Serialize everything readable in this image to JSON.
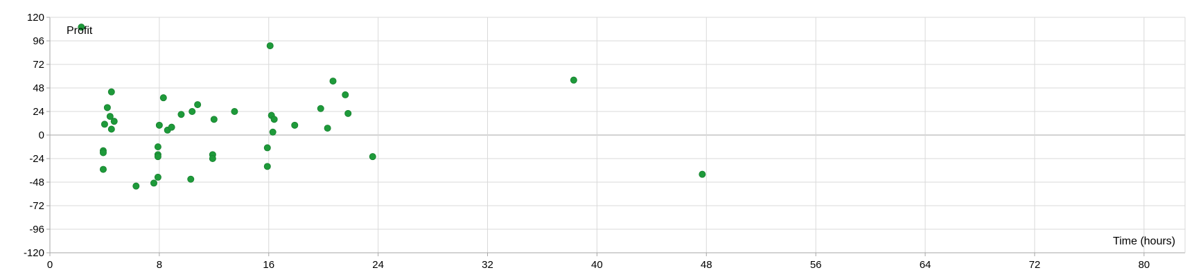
{
  "chart_data": {
    "type": "scatter",
    "xlabel": "Time (hours)",
    "ylabel": "Profit",
    "xlim": [
      0,
      83
    ],
    "ylim": [
      -120,
      120
    ],
    "x_ticks": [
      0,
      8,
      16,
      24,
      32,
      40,
      48,
      56,
      64,
      72,
      80
    ],
    "y_ticks": [
      120,
      96,
      72,
      48,
      24,
      0,
      -24,
      -48,
      -72,
      -96,
      -120
    ],
    "grid": true,
    "marker_color": "#1e9a3a",
    "series": [
      {
        "points": [
          {
            "x": 2.3,
            "y": 110
          },
          {
            "x": 3.9,
            "y": -16
          },
          {
            "x": 3.9,
            "y": -18
          },
          {
            "x": 3.9,
            "y": -35
          },
          {
            "x": 4.0,
            "y": 11
          },
          {
            "x": 4.2,
            "y": 28
          },
          {
            "x": 4.4,
            "y": 19
          },
          {
            "x": 4.5,
            "y": 6
          },
          {
            "x": 4.5,
            "y": 44
          },
          {
            "x": 4.7,
            "y": 14
          },
          {
            "x": 6.3,
            "y": -52
          },
          {
            "x": 7.6,
            "y": -49
          },
          {
            "x": 7.9,
            "y": -12
          },
          {
            "x": 7.9,
            "y": -20
          },
          {
            "x": 7.9,
            "y": -22
          },
          {
            "x": 7.9,
            "y": -43
          },
          {
            "x": 8.0,
            "y": 10
          },
          {
            "x": 8.3,
            "y": 38
          },
          {
            "x": 8.6,
            "y": 5
          },
          {
            "x": 8.9,
            "y": 8
          },
          {
            "x": 9.6,
            "y": 21
          },
          {
            "x": 10.3,
            "y": -45
          },
          {
            "x": 10.4,
            "y": 24
          },
          {
            "x": 10.8,
            "y": 31
          },
          {
            "x": 11.9,
            "y": -20
          },
          {
            "x": 11.9,
            "y": -24
          },
          {
            "x": 12.0,
            "y": 16
          },
          {
            "x": 13.5,
            "y": 24
          },
          {
            "x": 15.9,
            "y": -13
          },
          {
            "x": 15.9,
            "y": -32
          },
          {
            "x": 16.1,
            "y": 91
          },
          {
            "x": 16.2,
            "y": 20
          },
          {
            "x": 16.3,
            "y": 3
          },
          {
            "x": 16.4,
            "y": 16
          },
          {
            "x": 17.9,
            "y": 10
          },
          {
            "x": 19.8,
            "y": 27
          },
          {
            "x": 20.3,
            "y": 7
          },
          {
            "x": 20.7,
            "y": 55
          },
          {
            "x": 21.6,
            "y": 41
          },
          {
            "x": 21.8,
            "y": 22
          },
          {
            "x": 23.6,
            "y": -22
          },
          {
            "x": 38.3,
            "y": 56
          },
          {
            "x": 47.7,
            "y": -40
          }
        ]
      }
    ]
  }
}
